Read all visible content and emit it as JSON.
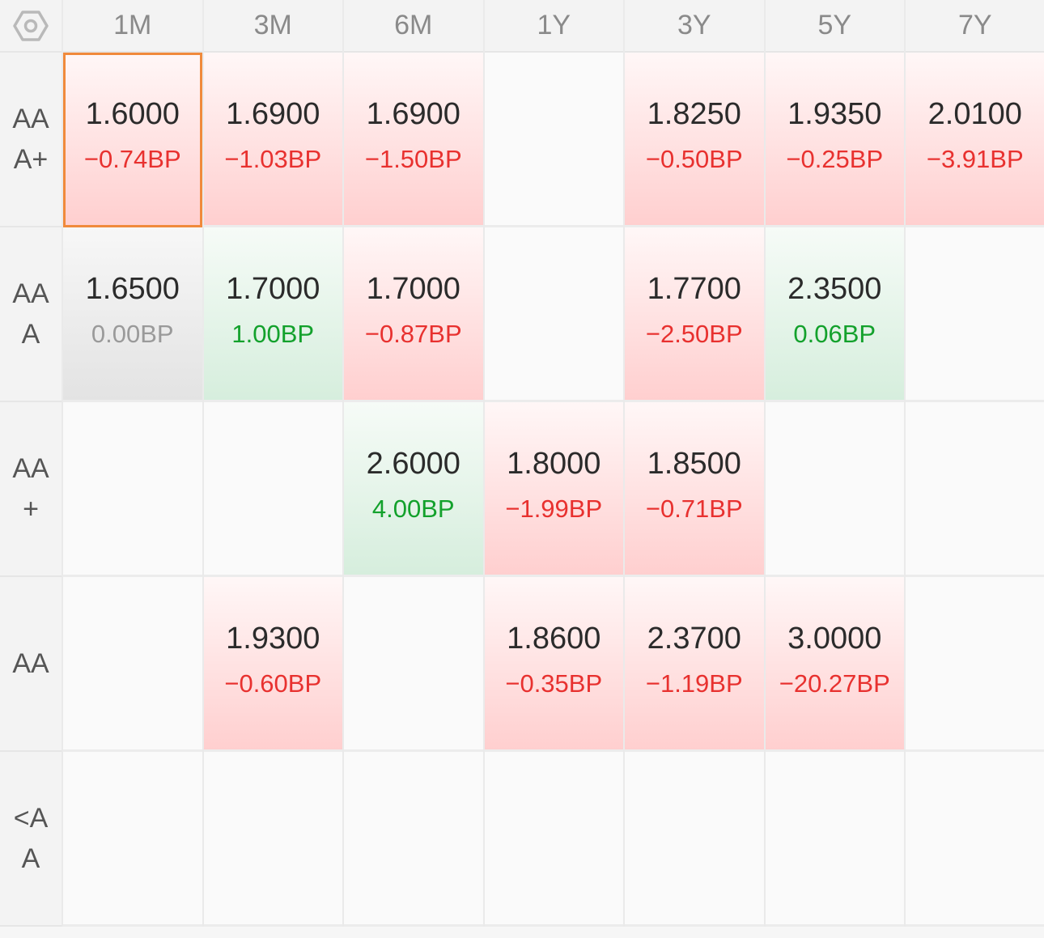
{
  "corner_icon": "settings-hexagon-icon",
  "columns": [
    "1M",
    "3M",
    "6M",
    "1Y",
    "3Y",
    "5Y",
    "7Y"
  ],
  "rows": [
    {
      "label": "AAA+",
      "cells": [
        {
          "value": "1.6000",
          "change": "−0.74BP",
          "trend": "neg",
          "selected": true
        },
        {
          "value": "1.6900",
          "change": "−1.03BP",
          "trend": "neg"
        },
        {
          "value": "1.6900",
          "change": "−1.50BP",
          "trend": "neg"
        },
        null,
        {
          "value": "1.8250",
          "change": "−0.50BP",
          "trend": "neg"
        },
        {
          "value": "1.9350",
          "change": "−0.25BP",
          "trend": "neg"
        },
        {
          "value": "2.0100",
          "change": "−3.91BP",
          "trend": "neg"
        }
      ]
    },
    {
      "label": "AAA",
      "cells": [
        {
          "value": "1.6500",
          "change": "0.00BP",
          "trend": "zero"
        },
        {
          "value": "1.7000",
          "change": "1.00BP",
          "trend": "pos"
        },
        {
          "value": "1.7000",
          "change": "−0.87BP",
          "trend": "neg"
        },
        null,
        {
          "value": "1.7700",
          "change": "−2.50BP",
          "trend": "neg"
        },
        {
          "value": "2.3500",
          "change": "0.06BP",
          "trend": "pos"
        },
        null
      ]
    },
    {
      "label": "AA+",
      "cells": [
        null,
        null,
        {
          "value": "2.6000",
          "change": "4.00BP",
          "trend": "pos"
        },
        {
          "value": "1.8000",
          "change": "−1.99BP",
          "trend": "neg"
        },
        {
          "value": "1.8500",
          "change": "−0.71BP",
          "trend": "neg"
        },
        null,
        null
      ]
    },
    {
      "label": "AA",
      "cells": [
        null,
        {
          "value": "1.9300",
          "change": "−0.60BP",
          "trend": "neg"
        },
        null,
        {
          "value": "1.8600",
          "change": "−0.35BP",
          "trend": "neg"
        },
        {
          "value": "2.3700",
          "change": "−1.19BP",
          "trend": "neg"
        },
        {
          "value": "3.0000",
          "change": "−20.27BP",
          "trend": "neg"
        },
        null
      ]
    },
    {
      "label": "<AA",
      "cells": [
        null,
        null,
        null,
        null,
        null,
        null,
        null
      ]
    }
  ]
}
